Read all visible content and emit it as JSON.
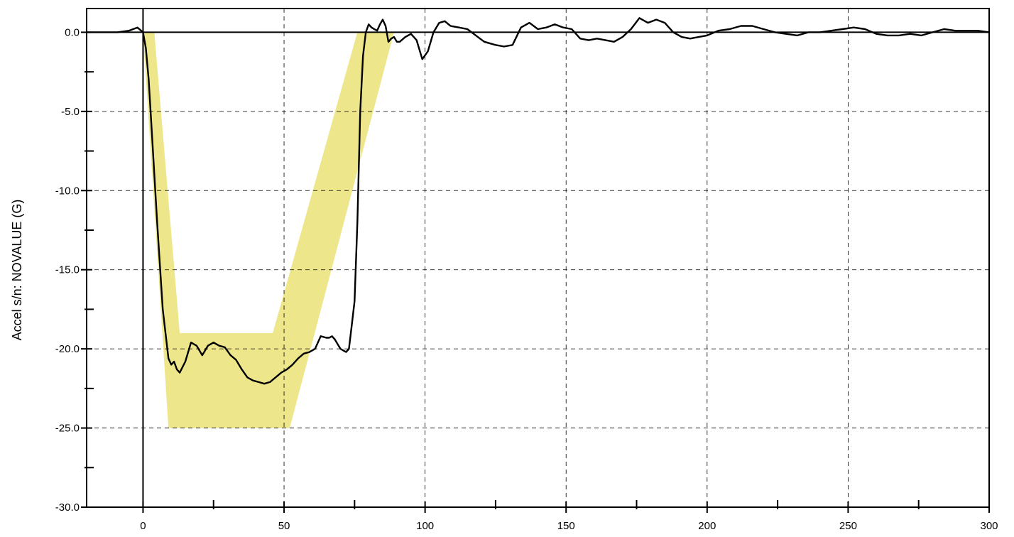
{
  "chart_data": {
    "type": "line",
    "title": "",
    "xlabel": "",
    "ylabel": "Accel s/n: NOVALUE (G)",
    "xlim": [
      -20,
      300
    ],
    "ylim": [
      -30,
      1.5
    ],
    "grid": true,
    "x_ticks": [
      0,
      50,
      100,
      150,
      200,
      250,
      300
    ],
    "x_tick_labels": [
      "0",
      "50",
      "100",
      "150",
      "200",
      "250",
      "300"
    ],
    "x_minor_ticks": [
      25,
      75,
      125,
      175,
      225,
      275
    ],
    "y_ticks": [
      0,
      -5,
      -10,
      -15,
      -20,
      -25,
      -30
    ],
    "y_tick_labels": [
      "0.0",
      "-5.0",
      "-10.0",
      "-15.0",
      "-20.0",
      "-25.0",
      "-30.0"
    ],
    "y_minor_ticks": [
      -2.5,
      -7.5,
      -12.5,
      -17.5,
      -22.5,
      -27.5
    ],
    "colors": {
      "corridor": "#eee68a",
      "trace": "#000000"
    },
    "corridor": [
      [
        0,
        0
      ],
      [
        4,
        0
      ],
      [
        13,
        -19
      ],
      [
        46,
        -19
      ],
      [
        76,
        0
      ],
      [
        89,
        0
      ],
      [
        52,
        -25
      ],
      [
        9,
        -25
      ]
    ],
    "series": [
      {
        "x": [
          -20,
          -9,
          -5,
          -2,
          0,
          1,
          2,
          3,
          5,
          7,
          9,
          10,
          11,
          12,
          13,
          15,
          17,
          19,
          21,
          23,
          25,
          27,
          29,
          31,
          33,
          35,
          37,
          39,
          41,
          43,
          45,
          47,
          49,
          51,
          53,
          55,
          57,
          59,
          61,
          63,
          65,
          66,
          67,
          68,
          69,
          70,
          71,
          72,
          73,
          74,
          75,
          76,
          77,
          78,
          79,
          80,
          81,
          82,
          83,
          84,
          85,
          86,
          87,
          88,
          89,
          90,
          91,
          93,
          95,
          97,
          99,
          101,
          103,
          105,
          107,
          109,
          112,
          115,
          118,
          121,
          125,
          128,
          131,
          134,
          137,
          140,
          143,
          146,
          149,
          152,
          155,
          158,
          161,
          164,
          167,
          170,
          173,
          176,
          179,
          182,
          185,
          188,
          191,
          194,
          197,
          200,
          204,
          208,
          212,
          216,
          220,
          224,
          228,
          232,
          236,
          240,
          244,
          248,
          252,
          256,
          260,
          264,
          268,
          272,
          276,
          280,
          284,
          288,
          292,
          296,
          300
        ],
        "values": [
          0.0,
          0.0,
          0.1,
          0.3,
          0.0,
          -1.0,
          -3.0,
          -6.0,
          -12.0,
          -17.5,
          -20.6,
          -21.0,
          -20.8,
          -21.3,
          -21.5,
          -20.8,
          -19.6,
          -19.8,
          -20.4,
          -19.8,
          -19.6,
          -19.8,
          -19.9,
          -20.4,
          -20.7,
          -21.3,
          -21.8,
          -22.0,
          -22.1,
          -22.2,
          -22.1,
          -21.8,
          -21.5,
          -21.3,
          -21.0,
          -20.6,
          -20.3,
          -20.2,
          -20.0,
          -19.2,
          -19.3,
          -19.3,
          -19.2,
          -19.4,
          -19.7,
          -20.0,
          -20.1,
          -20.2,
          -20.0,
          -18.5,
          -17.0,
          -12.0,
          -5.0,
          -1.5,
          0.0,
          0.5,
          0.3,
          0.2,
          0.1,
          0.5,
          0.8,
          0.4,
          -0.6,
          -0.4,
          -0.3,
          -0.6,
          -0.6,
          -0.3,
          -0.1,
          -0.5,
          -1.7,
          -1.2,
          0.0,
          0.6,
          0.7,
          0.4,
          0.3,
          0.2,
          -0.2,
          -0.6,
          -0.8,
          -0.9,
          -0.8,
          0.3,
          0.6,
          0.2,
          0.3,
          0.5,
          0.3,
          0.2,
          -0.4,
          -0.5,
          -0.4,
          -0.5,
          -0.6,
          -0.3,
          0.2,
          0.9,
          0.6,
          0.8,
          0.6,
          0.0,
          -0.3,
          -0.4,
          -0.3,
          -0.2,
          0.1,
          0.2,
          0.4,
          0.4,
          0.2,
          0.0,
          -0.1,
          -0.2,
          0.0,
          0.0,
          0.1,
          0.2,
          0.3,
          0.2,
          -0.1,
          -0.2,
          -0.2,
          -0.1,
          -0.2,
          0.0,
          0.2,
          0.1,
          0.1,
          0.1,
          0.0
        ]
      }
    ]
  }
}
